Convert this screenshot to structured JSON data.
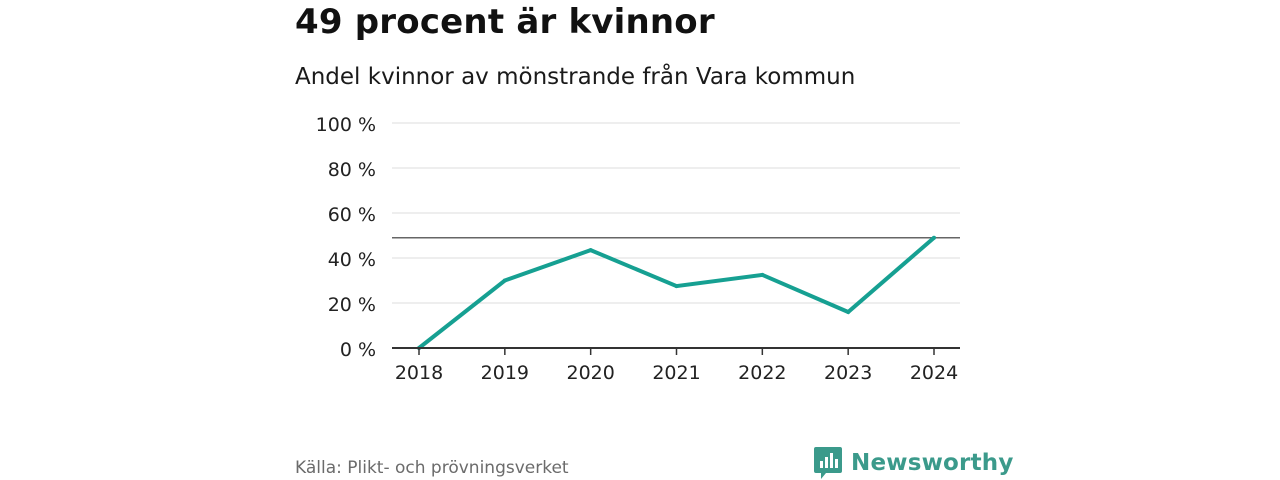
{
  "colors": {
    "line": "#16a092",
    "grid": "#dddddd",
    "axis": "#333333",
    "reference": "#666666",
    "brand": "#3b9a8b"
  },
  "header": {
    "title": "49 procent är kvinnor",
    "subtitle": "Andel kvinnor av mönstrande från Vara kommun"
  },
  "footer": {
    "source": "Källa: Plikt- och prövningsverket",
    "brand": "Newsworthy",
    "brand_icon": "bar-chart-icon"
  },
  "chart_data": {
    "type": "line",
    "title": "Andel kvinnor av mönstrande från Vara kommun",
    "xlabel": "",
    "ylabel": "",
    "x": [
      "2018",
      "2019",
      "2020",
      "2021",
      "2022",
      "2023",
      "2024"
    ],
    "series": [
      {
        "name": "Andel kvinnor",
        "values": [
          0,
          30,
          43.5,
          27.5,
          32.5,
          16,
          49
        ]
      }
    ],
    "reference_line": 49,
    "ylim": [
      0,
      100
    ],
    "yticks": [
      0,
      20,
      40,
      60,
      80,
      100
    ],
    "ytick_labels": [
      "0 %",
      "20 %",
      "40 %",
      "60 %",
      "80 %",
      "100 %"
    ],
    "grid": true,
    "legend": "none"
  }
}
